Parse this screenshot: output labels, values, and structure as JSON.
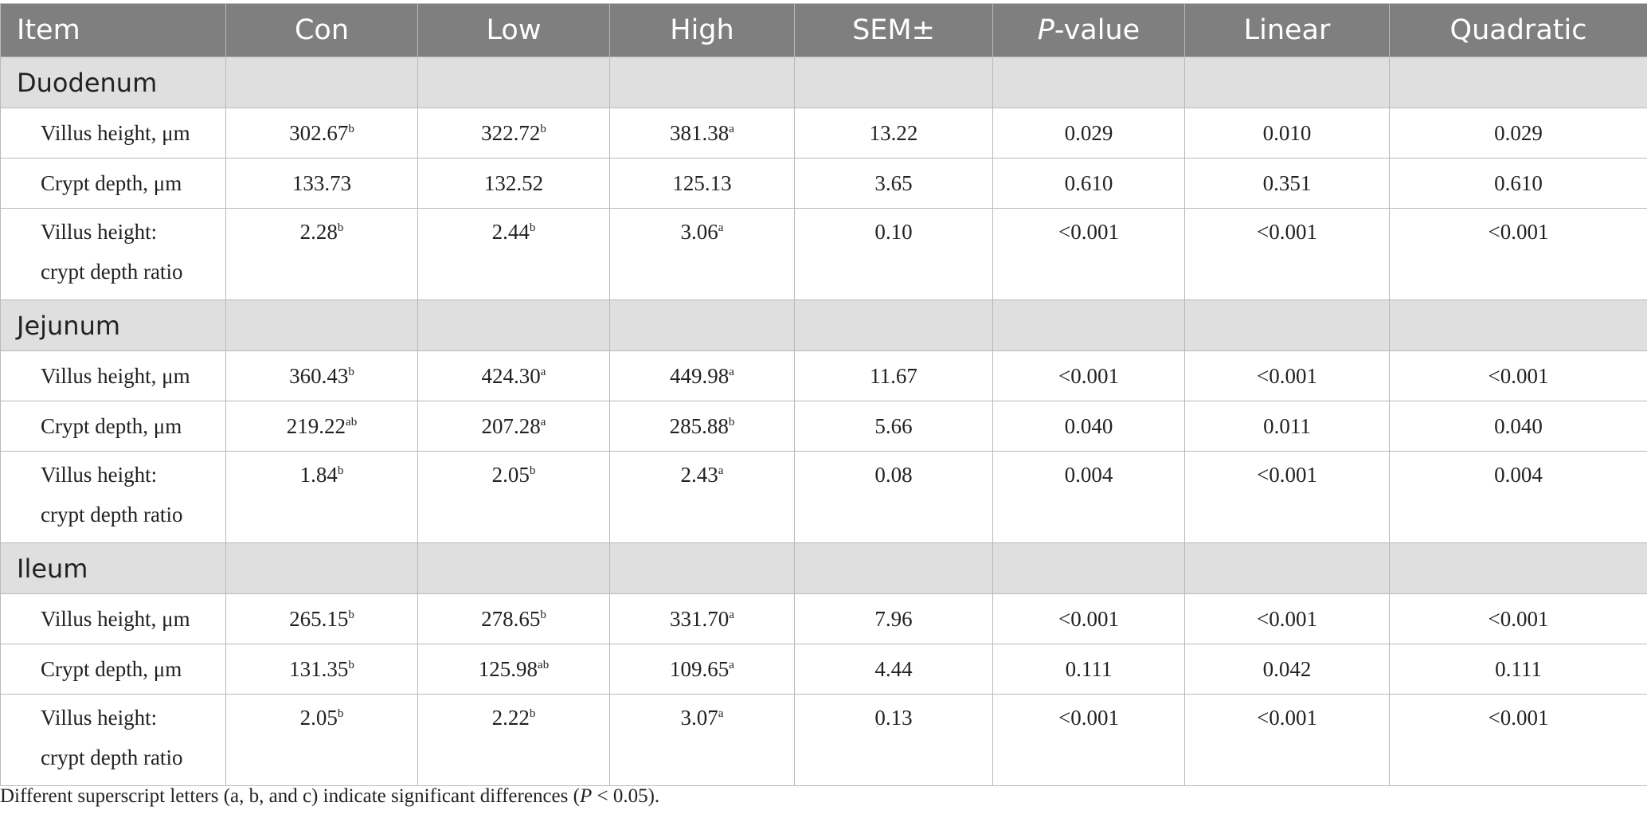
{
  "table": {
    "headers": [
      "Item",
      "Con",
      "Low",
      "High",
      "SEM±",
      "P",
      "-value",
      "Linear",
      "Quadratic"
    ],
    "sections": [
      {
        "name": "Duodenum",
        "rows": [
          {
            "item": [
              "Villus height, μm"
            ],
            "con": "302.67",
            "con_sup": "b",
            "low": "322.72",
            "low_sup": "b",
            "high": "381.38",
            "high_sup": "a",
            "sem": "13.22",
            "p": "0.029",
            "linear": "0.010",
            "quadratic": "0.029"
          },
          {
            "item": [
              "Crypt depth, μm"
            ],
            "con": "133.73",
            "con_sup": "",
            "low": "132.52",
            "low_sup": "",
            "high": "125.13",
            "high_sup": "",
            "sem": "3.65",
            "p": "0.610",
            "linear": "0.351",
            "quadratic": "0.610"
          },
          {
            "item": [
              "Villus height:",
              "crypt depth ratio"
            ],
            "con": "2.28",
            "con_sup": "b",
            "low": "2.44",
            "low_sup": "b",
            "high": "3.06",
            "high_sup": "a",
            "sem": "0.10",
            "p": "<0.001",
            "linear": "<0.001",
            "quadratic": "<0.001"
          }
        ]
      },
      {
        "name": "Jejunum",
        "rows": [
          {
            "item": [
              "Villus height, μm"
            ],
            "con": "360.43",
            "con_sup": "b",
            "low": "424.30",
            "low_sup": "a",
            "high": "449.98",
            "high_sup": "a",
            "sem": "11.67",
            "p": "<0.001",
            "linear": "<0.001",
            "quadratic": "<0.001"
          },
          {
            "item": [
              "Crypt depth, μm"
            ],
            "con": "219.22",
            "con_sup": "ab",
            "low": "207.28",
            "low_sup": "a",
            "high": "285.88",
            "high_sup": "b",
            "sem": "5.66",
            "p": "0.040",
            "linear": "0.011",
            "quadratic": "0.040"
          },
          {
            "item": [
              "Villus height:",
              "crypt depth ratio"
            ],
            "con": "1.84",
            "con_sup": "b",
            "low": "2.05",
            "low_sup": "b",
            "high": "2.43",
            "high_sup": "a",
            "sem": "0.08",
            "p": "0.004",
            "linear": "<0.001",
            "quadratic": "0.004"
          }
        ]
      },
      {
        "name": "Ileum",
        "rows": [
          {
            "item": [
              "Villus height, μm"
            ],
            "con": "265.15",
            "con_sup": "b",
            "low": "278.65",
            "low_sup": "b",
            "high": "331.70",
            "high_sup": "a",
            "sem": "7.96",
            "p": "<0.001",
            "linear": "<0.001",
            "quadratic": "<0.001"
          },
          {
            "item": [
              "Crypt depth, μm"
            ],
            "con": "131.35",
            "con_sup": "b",
            "low": "125.98",
            "low_sup": "ab",
            "high": "109.65",
            "high_sup": "a",
            "sem": "4.44",
            "p": "0.111",
            "linear": "0.042",
            "quadratic": "0.111"
          },
          {
            "item": [
              "Villus height:",
              "crypt depth ratio"
            ],
            "con": "2.05",
            "con_sup": "b",
            "low": "2.22",
            "low_sup": "b",
            "high": "3.07",
            "high_sup": "a",
            "sem": "0.13",
            "p": "<0.001",
            "linear": "<0.001",
            "quadratic": "<0.001"
          }
        ]
      }
    ]
  },
  "footnote": {
    "before": "Different superscript letters (a, b, and c) indicate significant differences (",
    "italic": "P",
    "after": " < 0.05)."
  },
  "colors": {
    "header_bg": "#7f7f7f",
    "section_bg": "#e0dfe0",
    "border": "#b9b9b9"
  }
}
